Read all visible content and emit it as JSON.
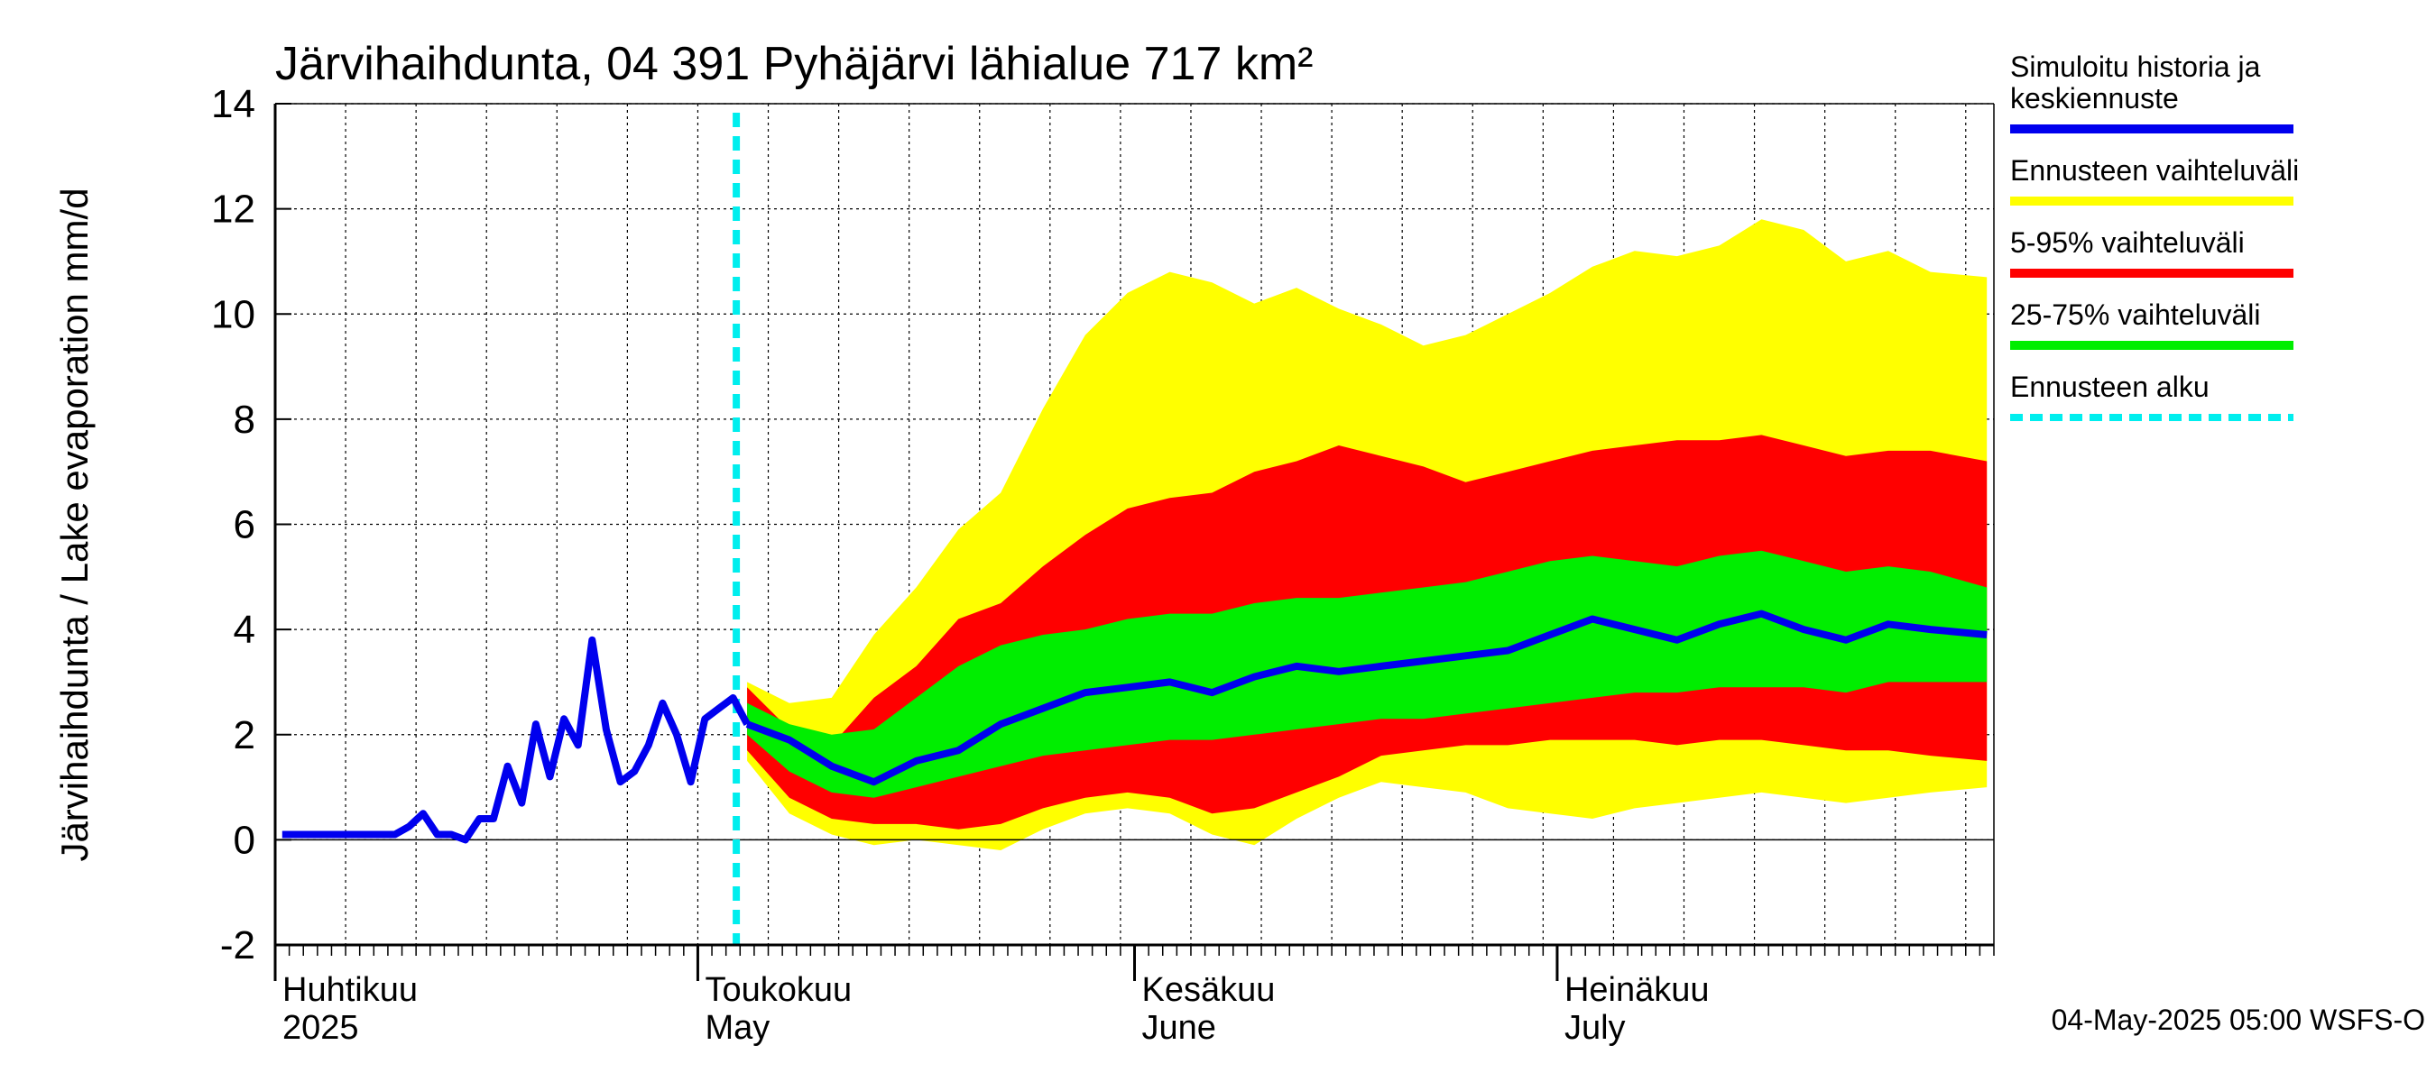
{
  "chart_data": {
    "type": "area",
    "title": "Järvihaihdunta, 04 391 Pyhäjärvi lähialue 717 km²",
    "ylabel": "Järvihaihdunta / Lake evaporation   mm/d",
    "ylim": [
      -2,
      14
    ],
    "yticks": [
      "-2",
      "0",
      "2",
      "4",
      "6",
      "8",
      "10",
      "12",
      "14"
    ],
    "xlim": [
      "2025-04-01",
      "2025-07-31"
    ],
    "months": [
      {
        "fi": "Huhtikuu",
        "en": "2025",
        "date": "2025-04-01"
      },
      {
        "fi": "Toukokuu",
        "en": "May",
        "date": "2025-05-01"
      },
      {
        "fi": "Kesäkuu",
        "en": "June",
        "date": "2025-06-01"
      },
      {
        "fi": "Heinäkuu",
        "en": "July",
        "date": "2025-07-01"
      }
    ],
    "forecast_start": "2025-05-04",
    "colors": {
      "history": "#0000ee",
      "range": "#ffff00",
      "p5_95": "#ff0000",
      "p25_75": "#00ee00",
      "forecast_start": "#00eeee"
    },
    "legend": [
      {
        "label": "Simuloitu historia ja keskiennuste",
        "lines": [
          "Simuloitu historia ja",
          "keskiennuste"
        ],
        "color": "#0000ee",
        "style": "solid"
      },
      {
        "label": "Ennusteen vaihteluväli",
        "lines": [
          "Ennusteen vaihteluväli"
        ],
        "color": "#ffff00",
        "style": "solid"
      },
      {
        "label": "5-95% vaihteluväli",
        "lines": [
          "5-95% vaihteluväli"
        ],
        "color": "#ff0000",
        "style": "solid"
      },
      {
        "label": "25-75% vaihteluväli",
        "lines": [
          "25-75% vaihteluväli"
        ],
        "color": "#00ee00",
        "style": "solid"
      },
      {
        "label": "Ennusteen alku",
        "lines": [
          "Ennusteen alku"
        ],
        "color": "#00eeee",
        "style": "dashed"
      }
    ],
    "footer": "04-May-2025 05:00 WSFS-O",
    "history": {
      "dates": [
        "2025-04-01",
        "2025-04-02",
        "2025-04-03",
        "2025-04-04",
        "2025-04-05",
        "2025-04-06",
        "2025-04-07",
        "2025-04-08",
        "2025-04-09",
        "2025-04-10",
        "2025-04-11",
        "2025-04-12",
        "2025-04-13",
        "2025-04-14",
        "2025-04-15",
        "2025-04-16",
        "2025-04-17",
        "2025-04-18",
        "2025-04-19",
        "2025-04-20",
        "2025-04-21",
        "2025-04-22",
        "2025-04-23",
        "2025-04-24",
        "2025-04-25",
        "2025-04-26",
        "2025-04-27",
        "2025-04-28",
        "2025-04-29",
        "2025-04-30",
        "2025-05-01",
        "2025-05-02",
        "2025-05-03",
        "2025-05-04"
      ],
      "values": [
        0.1,
        0.1,
        0.1,
        0.1,
        0.1,
        0.1,
        0.1,
        0.1,
        0.1,
        0.25,
        0.5,
        0.1,
        0.1,
        0.0,
        0.4,
        0.4,
        1.4,
        0.7,
        2.2,
        1.2,
        2.3,
        1.8,
        3.8,
        2.1,
        1.1,
        1.3,
        1.8,
        2.6,
        2.0,
        1.1,
        2.3,
        2.5,
        2.7,
        2.2
      ]
    },
    "forecast": {
      "dates": [
        "2025-05-04",
        "2025-05-07",
        "2025-05-10",
        "2025-05-13",
        "2025-05-16",
        "2025-05-19",
        "2025-05-22",
        "2025-05-25",
        "2025-05-28",
        "2025-05-31",
        "2025-06-03",
        "2025-06-06",
        "2025-06-09",
        "2025-06-12",
        "2025-06-15",
        "2025-06-18",
        "2025-06-21",
        "2025-06-24",
        "2025-06-27",
        "2025-06-30",
        "2025-07-03",
        "2025-07-06",
        "2025-07-09",
        "2025-07-12",
        "2025-07-15",
        "2025-07-18",
        "2025-07-21",
        "2025-07-24",
        "2025-07-27",
        "2025-07-31"
      ],
      "median": [
        2.2,
        1.9,
        1.4,
        1.1,
        1.5,
        1.7,
        2.2,
        2.5,
        2.8,
        2.9,
        3.0,
        2.8,
        3.1,
        3.3,
        3.2,
        3.3,
        3.4,
        3.5,
        3.6,
        3.9,
        4.2,
        4.0,
        3.8,
        4.1,
        4.3,
        4.0,
        3.8,
        4.1,
        4.0,
        3.9
      ],
      "p25": [
        2.0,
        1.3,
        0.9,
        0.8,
        1.0,
        1.2,
        1.4,
        1.6,
        1.7,
        1.8,
        1.9,
        1.9,
        2.0,
        2.1,
        2.2,
        2.3,
        2.3,
        2.4,
        2.5,
        2.6,
        2.7,
        2.8,
        2.8,
        2.9,
        2.9,
        2.9,
        2.8,
        3.0,
        3.0,
        3.0
      ],
      "p75": [
        2.6,
        2.2,
        2.0,
        2.1,
        2.7,
        3.3,
        3.7,
        3.9,
        4.0,
        4.2,
        4.3,
        4.3,
        4.5,
        4.6,
        4.6,
        4.7,
        4.8,
        4.9,
        5.1,
        5.3,
        5.4,
        5.3,
        5.2,
        5.4,
        5.5,
        5.3,
        5.1,
        5.2,
        5.1,
        4.8
      ],
      "p5": [
        1.7,
        0.8,
        0.4,
        0.3,
        0.3,
        0.2,
        0.3,
        0.6,
        0.8,
        0.9,
        0.8,
        0.5,
        0.6,
        0.9,
        1.2,
        1.6,
        1.7,
        1.8,
        1.8,
        1.9,
        1.9,
        1.9,
        1.8,
        1.9,
        1.9,
        1.8,
        1.7,
        1.7,
        1.6,
        1.5
      ],
      "p95": [
        2.9,
        2.1,
        1.8,
        2.7,
        3.3,
        4.2,
        4.5,
        5.2,
        5.8,
        6.3,
        6.5,
        6.6,
        7.0,
        7.2,
        7.5,
        7.3,
        7.1,
        6.8,
        7.0,
        7.2,
        7.4,
        7.5,
        7.6,
        7.6,
        7.7,
        7.5,
        7.3,
        7.4,
        7.4,
        7.2
      ],
      "min": [
        1.5,
        0.5,
        0.1,
        -0.1,
        0.0,
        -0.1,
        -0.2,
        0.2,
        0.5,
        0.6,
        0.5,
        0.1,
        -0.1,
        0.4,
        0.8,
        1.1,
        1.0,
        0.9,
        0.6,
        0.5,
        0.4,
        0.6,
        0.7,
        0.8,
        0.9,
        0.8,
        0.7,
        0.8,
        0.9,
        1.0
      ],
      "max": [
        3.0,
        2.6,
        2.7,
        3.9,
        4.8,
        5.9,
        6.6,
        8.2,
        9.6,
        10.4,
        10.8,
        10.6,
        10.2,
        10.5,
        10.1,
        9.8,
        9.4,
        9.6,
        10.0,
        10.4,
        10.9,
        11.2,
        11.1,
        11.3,
        11.8,
        11.6,
        11.0,
        11.2,
        10.8,
        10.7
      ]
    }
  }
}
